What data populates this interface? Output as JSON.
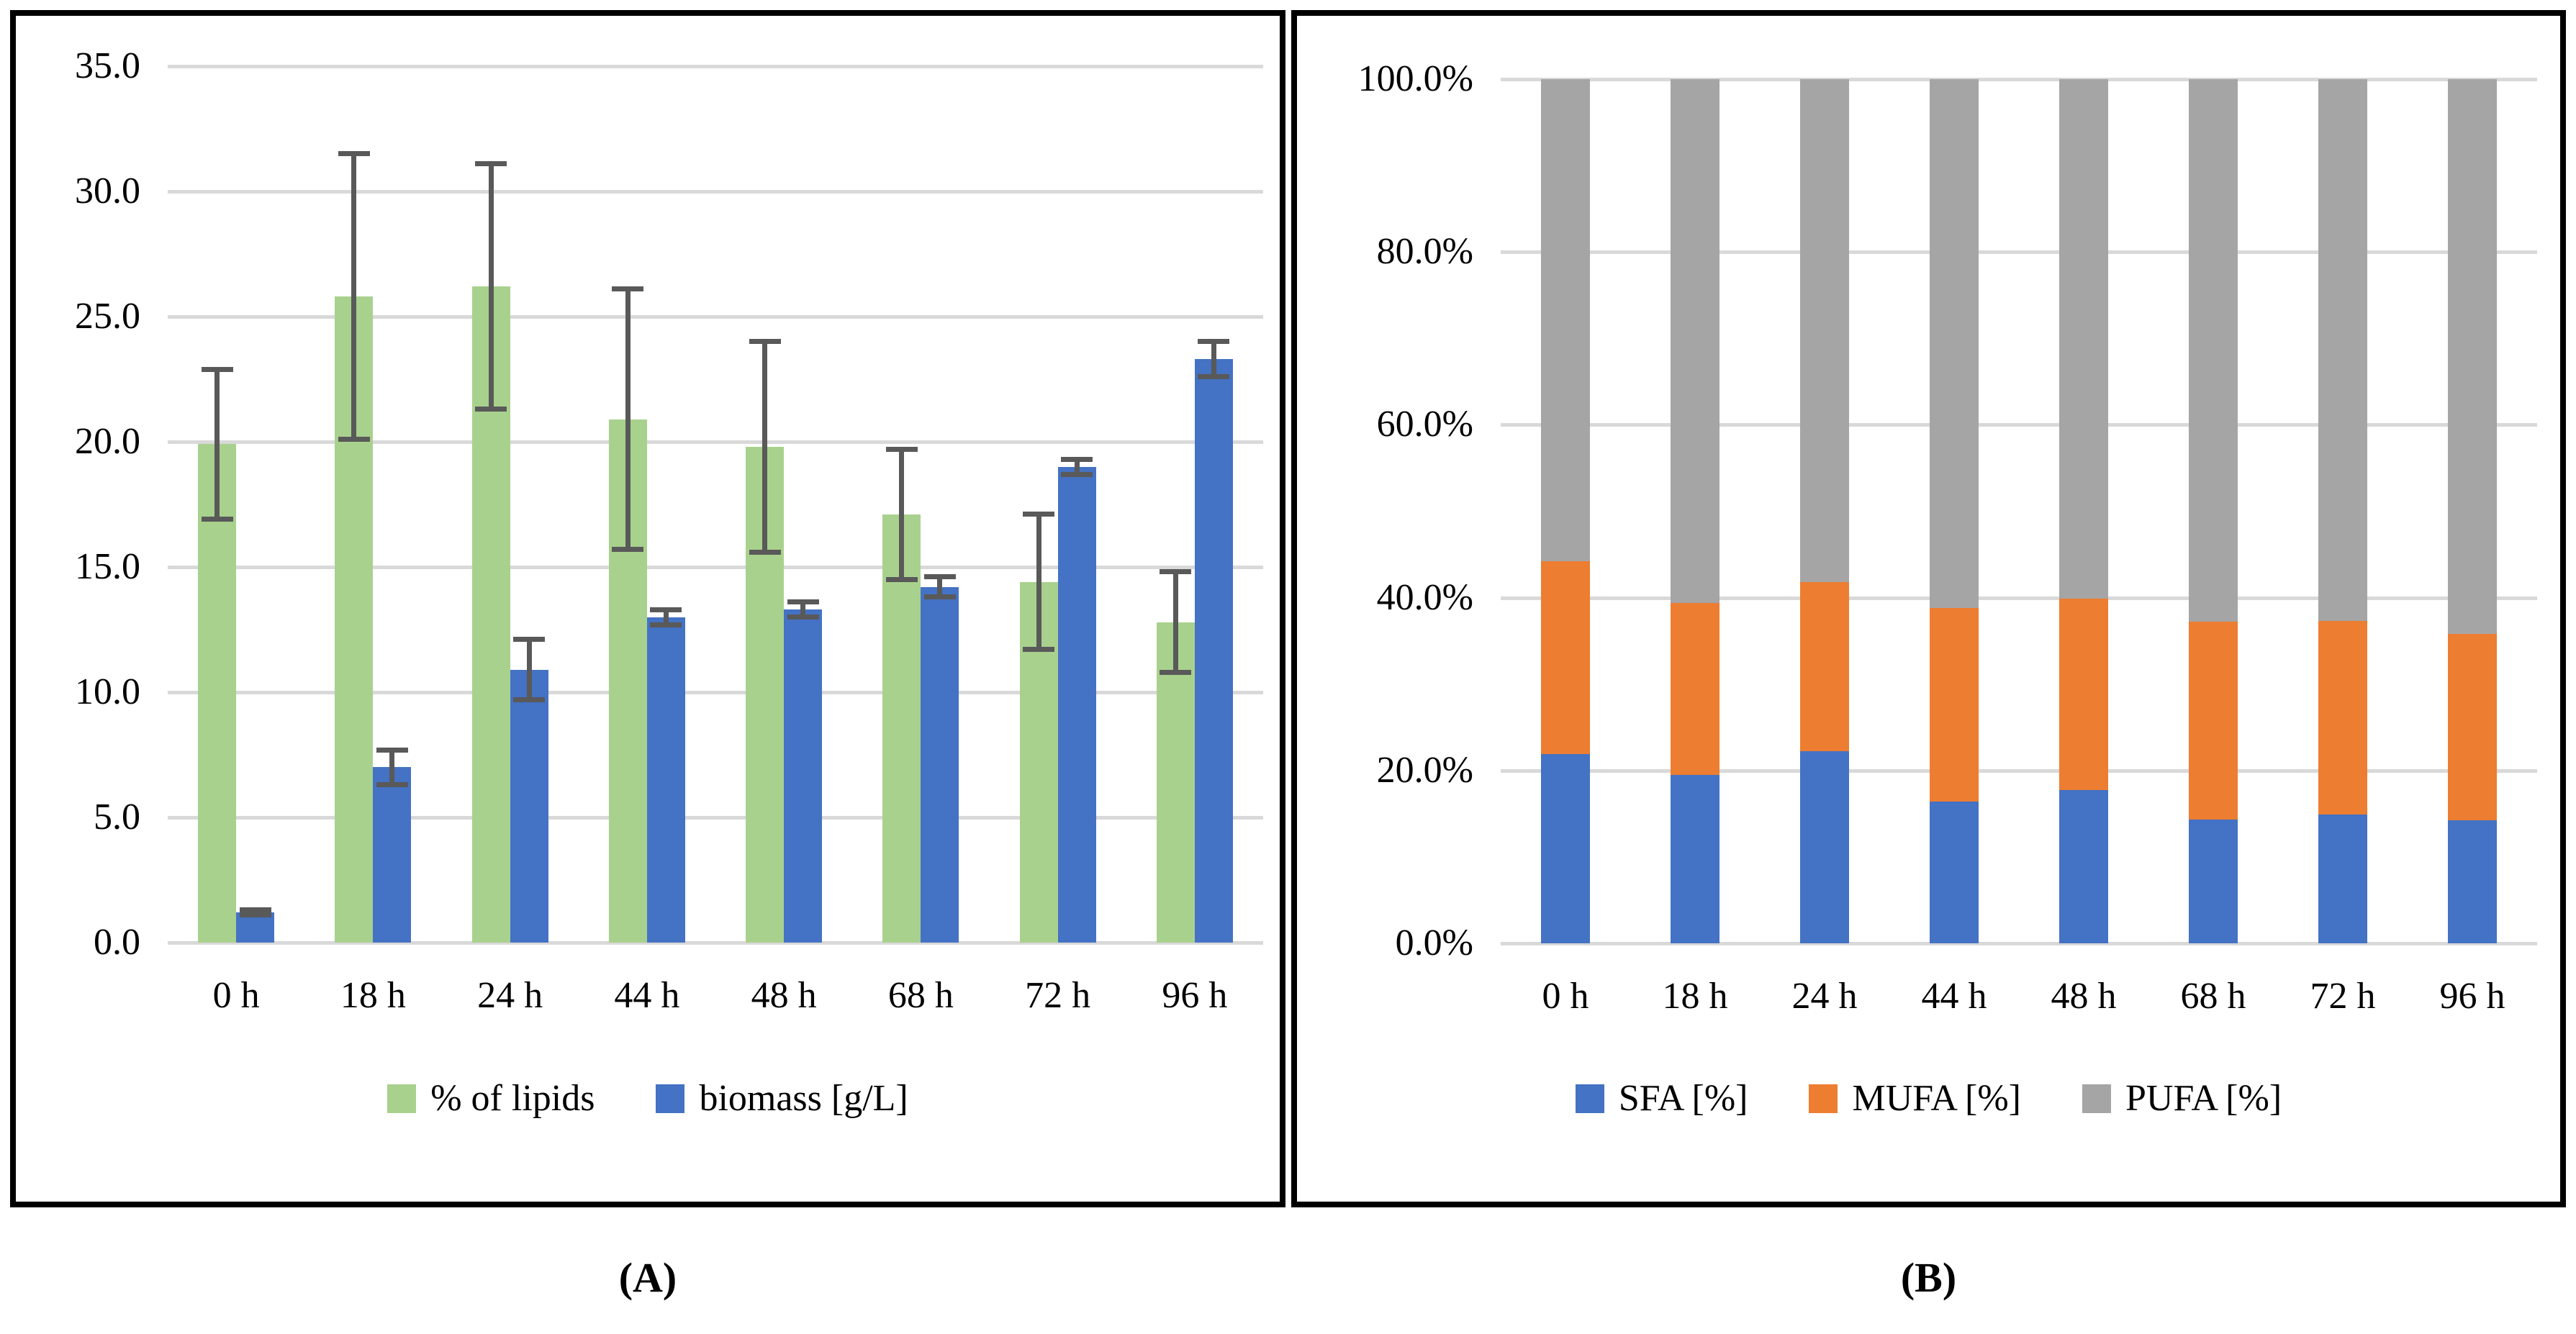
{
  "figure": {
    "caption_a": "(A)",
    "caption_b": "(B)",
    "colors": {
      "green": "#A9D18E",
      "blue": "#4472C4",
      "orange": "#ED7D31",
      "gray": "#A5A5A5",
      "grid": "#D9D9D9",
      "error_bar": "#595959",
      "border": "#000000",
      "background": "#FFFFFF"
    }
  },
  "chart_data": [
    {
      "id": "A",
      "type": "bar",
      "title": "",
      "xlabel": "",
      "ylabel": "",
      "grid": true,
      "legend_position": "bottom",
      "ylim": [
        0,
        35
      ],
      "yticks": [
        {
          "value": 0,
          "label": "0.0"
        },
        {
          "value": 5,
          "label": "5.0"
        },
        {
          "value": 10,
          "label": "10.0"
        },
        {
          "value": 15,
          "label": "15.0"
        },
        {
          "value": 20,
          "label": "20.0"
        },
        {
          "value": 25,
          "label": "25.0"
        },
        {
          "value": 30,
          "label": "30.0"
        },
        {
          "value": 35,
          "label": "35.0"
        }
      ],
      "categories": [
        "0 h",
        "18 h",
        "24 h",
        "44 h",
        "48 h",
        "68 h",
        "72 h",
        "96 h"
      ],
      "series": [
        {
          "name": "% of lipids",
          "color_key": "green",
          "values": [
            19.9,
            25.8,
            26.2,
            20.9,
            19.8,
            17.1,
            14.4,
            12.8
          ],
          "errors": [
            3.1,
            5.8,
            5.0,
            5.3,
            4.3,
            2.7,
            2.8,
            2.1
          ]
        },
        {
          "name": "biomass [g/L]",
          "color_key": "blue",
          "values": [
            1.2,
            7.0,
            10.9,
            13.0,
            13.3,
            14.2,
            19.0,
            23.3
          ],
          "errors": [
            0.2,
            0.8,
            1.3,
            0.4,
            0.4,
            0.5,
            0.4,
            0.8
          ]
        }
      ]
    },
    {
      "id": "B",
      "type": "stacked-bar-100",
      "title": "",
      "xlabel": "",
      "ylabel": "",
      "grid": true,
      "legend_position": "bottom",
      "ylim": [
        0,
        100
      ],
      "yticks": [
        {
          "value": 0,
          "label": "0.0%"
        },
        {
          "value": 20,
          "label": "20.0%"
        },
        {
          "value": 40,
          "label": "40.0%"
        },
        {
          "value": 60,
          "label": "60.0%"
        },
        {
          "value": 80,
          "label": "80.0%"
        },
        {
          "value": 100,
          "label": "100.0%"
        }
      ],
      "categories": [
        "0 h",
        "18 h",
        "24 h",
        "44 h",
        "48 h",
        "68 h",
        "72 h",
        "96 h"
      ],
      "series": [
        {
          "name": "SFA [%]",
          "color_key": "blue",
          "values": [
            21.9,
            19.5,
            22.2,
            16.4,
            17.7,
            14.3,
            14.9,
            14.2
          ]
        },
        {
          "name": "MUFA [%]",
          "color_key": "orange",
          "values": [
            22.3,
            19.9,
            19.6,
            22.4,
            22.2,
            22.9,
            22.4,
            21.6
          ]
        },
        {
          "name": "PUFA [%]",
          "color_key": "gray",
          "values": [
            55.8,
            60.6,
            58.2,
            61.2,
            60.1,
            62.8,
            62.7,
            64.2
          ]
        }
      ]
    }
  ]
}
